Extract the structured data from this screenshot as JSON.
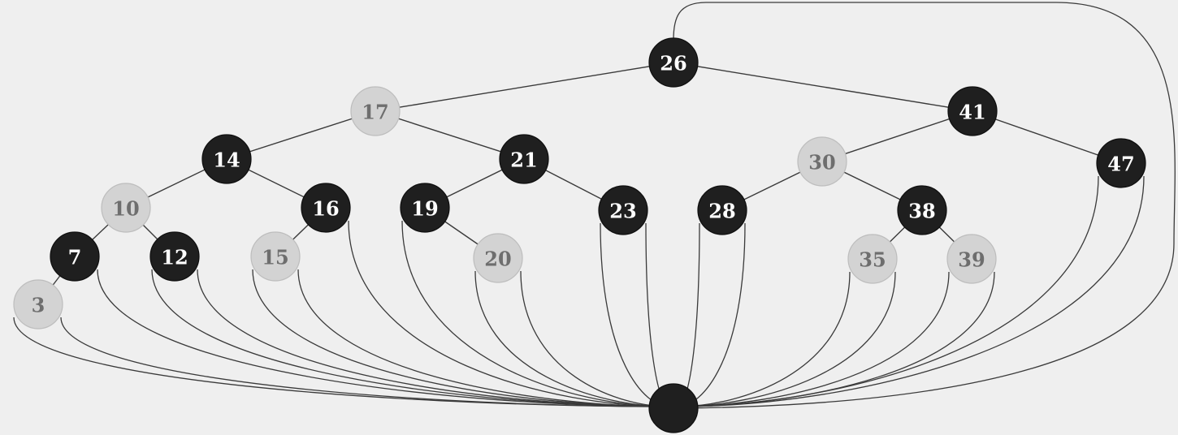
{
  "diagram": {
    "colors": {
      "background": "#efefef",
      "black_node_fill": "#1f1f1f",
      "black_node_text": "#ffffff",
      "red_node_fill": "#d3d3d3",
      "red_node_text": "#6e6e6e",
      "sentinel_fill": "#1f1f1f",
      "edge": "#3a3a3a"
    },
    "nodes": [
      {
        "id": "n26",
        "label": "26",
        "color": "black"
      },
      {
        "id": "n17",
        "label": "17",
        "color": "red"
      },
      {
        "id": "n41",
        "label": "41",
        "color": "black"
      },
      {
        "id": "n14",
        "label": "14",
        "color": "black"
      },
      {
        "id": "n21",
        "label": "21",
        "color": "black"
      },
      {
        "id": "n30",
        "label": "30",
        "color": "red"
      },
      {
        "id": "n47",
        "label": "47",
        "color": "black"
      },
      {
        "id": "n10",
        "label": "10",
        "color": "red"
      },
      {
        "id": "n16",
        "label": "16",
        "color": "black"
      },
      {
        "id": "n19",
        "label": "19",
        "color": "black"
      },
      {
        "id": "n23",
        "label": "23",
        "color": "black"
      },
      {
        "id": "n28",
        "label": "28",
        "color": "black"
      },
      {
        "id": "n38",
        "label": "38",
        "color": "black"
      },
      {
        "id": "n7",
        "label": "7",
        "color": "black"
      },
      {
        "id": "n12",
        "label": "12",
        "color": "black"
      },
      {
        "id": "n15",
        "label": "15",
        "color": "red"
      },
      {
        "id": "n20",
        "label": "20",
        "color": "red"
      },
      {
        "id": "n35",
        "label": "35",
        "color": "red"
      },
      {
        "id": "n39",
        "label": "39",
        "color": "red"
      },
      {
        "id": "n3",
        "label": "3",
        "color": "red"
      }
    ],
    "tree_edges": [
      [
        "n26",
        "n17"
      ],
      [
        "n26",
        "n41"
      ],
      [
        "n17",
        "n14"
      ],
      [
        "n17",
        "n21"
      ],
      [
        "n41",
        "n30"
      ],
      [
        "n41",
        "n47"
      ],
      [
        "n14",
        "n10"
      ],
      [
        "n14",
        "n16"
      ],
      [
        "n21",
        "n19"
      ],
      [
        "n21",
        "n23"
      ],
      [
        "n30",
        "n28"
      ],
      [
        "n30",
        "n38"
      ],
      [
        "n10",
        "n7"
      ],
      [
        "n10",
        "n12"
      ],
      [
        "n16",
        "n15"
      ],
      [
        "n19",
        "n20"
      ],
      [
        "n38",
        "n35"
      ],
      [
        "n38",
        "n39"
      ],
      [
        "n7",
        "n3"
      ]
    ],
    "sentinel": {
      "id": "nil",
      "label": "",
      "color": "black"
    },
    "nil_links": [
      "n3",
      "n3",
      "n7",
      "n12",
      "n12",
      "n15",
      "n15",
      "n16",
      "n19",
      "n20",
      "n20",
      "n23",
      "n23",
      "n28",
      "n28",
      "n35",
      "n35",
      "n39",
      "n39",
      "n47",
      "n47"
    ],
    "root_parent_link": "n26"
  }
}
